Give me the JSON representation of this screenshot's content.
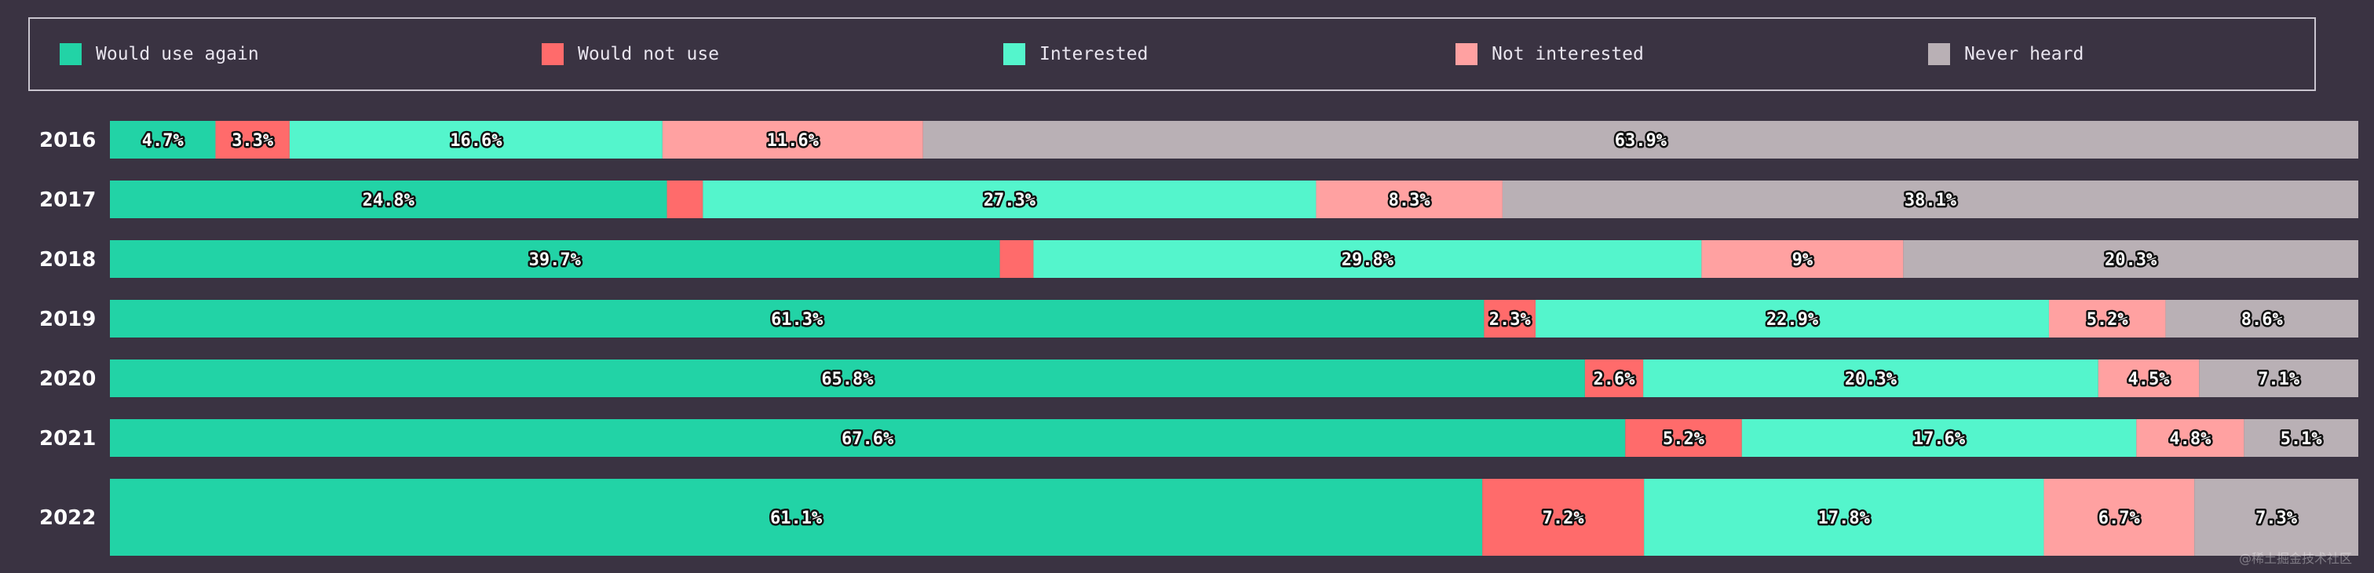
{
  "chart_data": {
    "type": "bar",
    "orientation": "horizontal",
    "stacked": true,
    "legend_position": "top",
    "categories": [
      "2016",
      "2017",
      "2018",
      "2019",
      "2020",
      "2021",
      "2022"
    ],
    "series": [
      {
        "name": "Would use again",
        "color": "#22d3a6",
        "values": [
          4.7,
          24.8,
          39.7,
          61.3,
          65.8,
          67.6,
          61.1
        ],
        "labels": [
          "4.7%",
          "24.8%",
          "39.7%",
          "61.3%",
          "65.8%",
          "67.6%",
          "61.1%"
        ]
      },
      {
        "name": "Would not use",
        "color": "#ff6b6b",
        "values": [
          3.3,
          1.6,
          1.5,
          2.3,
          2.6,
          5.2,
          7.2
        ],
        "labels": [
          "3.3%",
          "",
          "",
          "2.3%",
          "2.6%",
          "5.2%",
          "7.2%"
        ]
      },
      {
        "name": "Interested",
        "color": "#54f5cc",
        "values": [
          16.6,
          27.3,
          29.8,
          22.9,
          20.3,
          17.6,
          17.8
        ],
        "labels": [
          "16.6%",
          "27.3%",
          "29.8%",
          "22.9%",
          "20.3%",
          "17.6%",
          "17.8%"
        ]
      },
      {
        "name": "Not interested",
        "color": "#ffa1a1",
        "values": [
          11.6,
          8.3,
          9,
          5.2,
          4.5,
          4.8,
          6.7
        ],
        "labels": [
          "11.6%",
          "8.3%",
          "9%",
          "5.2%",
          "4.5%",
          "4.8%",
          "6.7%"
        ]
      },
      {
        "name": "Never heard",
        "color": "#b9b0b5",
        "values": [
          63.9,
          38.1,
          20.3,
          8.6,
          7.1,
          5.1,
          7.3
        ],
        "labels": [
          "63.9%",
          "38.1%",
          "20.3%",
          "8.6%",
          "7.1%",
          "5.1%",
          "7.3%"
        ]
      }
    ]
  },
  "watermark": "@稀土掘金技术社区"
}
